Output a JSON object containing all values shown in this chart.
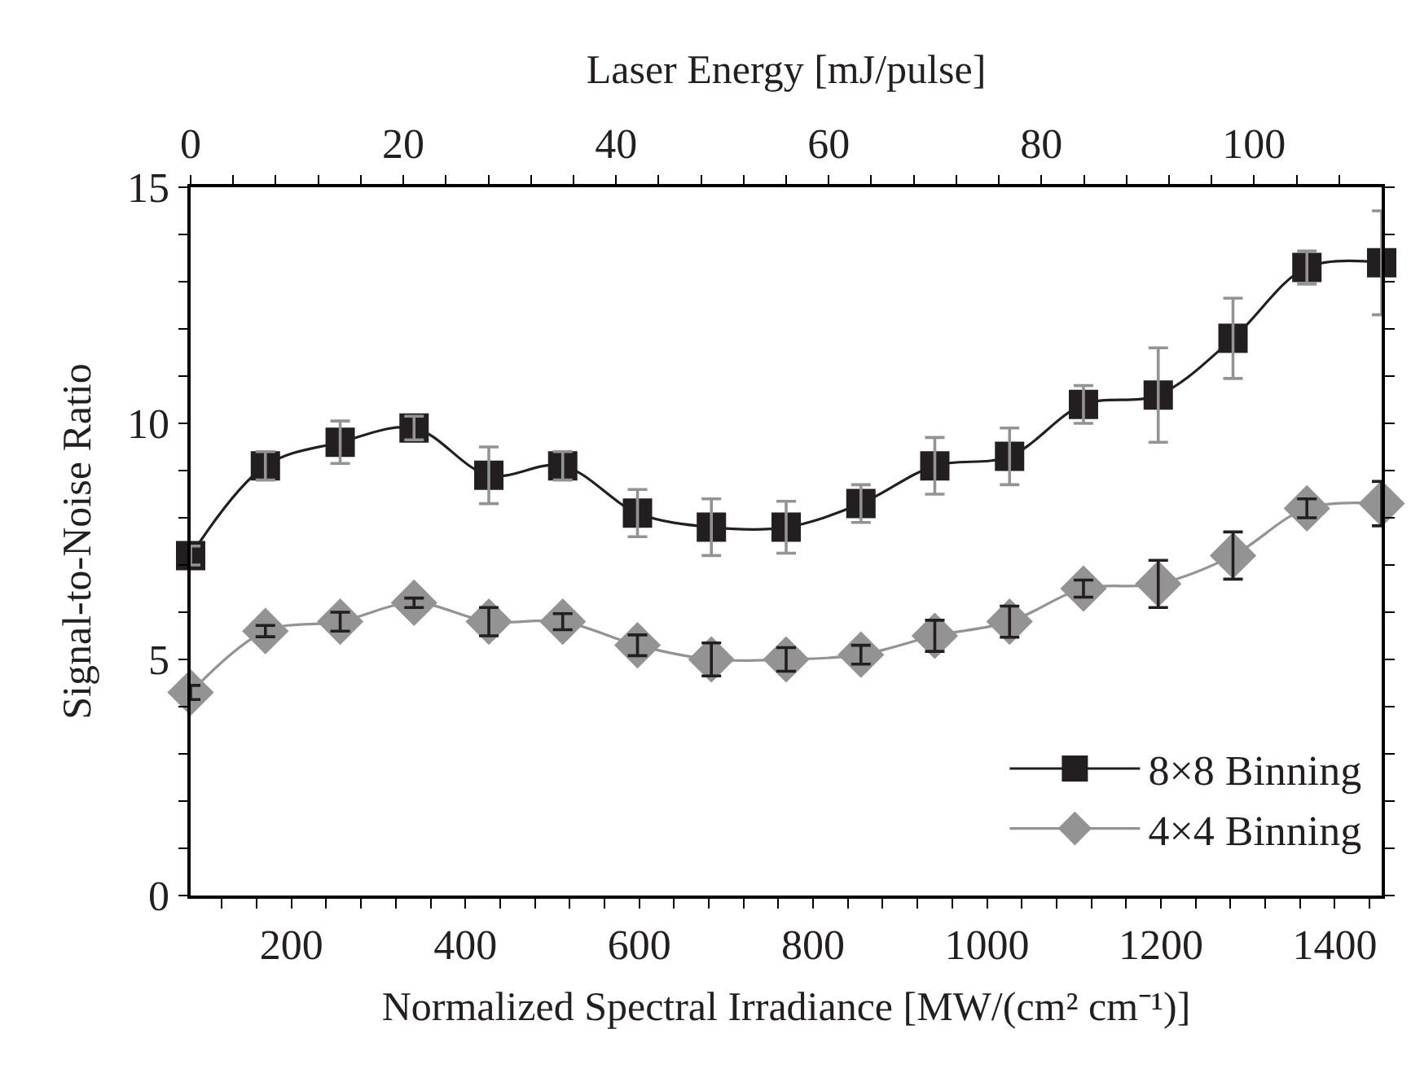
{
  "chart_data": {
    "type": "line",
    "xlabel": "Normalized Spectral Irradiance [MW/(cm² cm⁻¹)]",
    "x2label": "Laser Energy [mJ/pulse]",
    "ylabel": "Signal-to-Noise Ratio",
    "x": [
      84,
      170,
      256,
      341,
      427,
      512,
      598,
      683,
      769,
      855,
      940,
      1026,
      1111,
      1197,
      1283,
      1368,
      1454
    ],
    "series": [
      {
        "name": "8×8 Binning",
        "color": "#231f20",
        "marker": "square",
        "values": [
          7.2,
          9.1,
          9.6,
          9.9,
          8.9,
          9.1,
          8.1,
          7.8,
          7.8,
          8.3,
          9.1,
          9.3,
          10.4,
          10.6,
          11.8,
          13.3,
          13.4
        ],
        "errors": [
          0.2,
          0.3,
          0.45,
          0.25,
          0.6,
          0.3,
          0.5,
          0.6,
          0.55,
          0.4,
          0.6,
          0.6,
          0.4,
          1.0,
          0.85,
          0.35,
          1.1
        ]
      },
      {
        "name": "4×4 Binning",
        "color": "#939393",
        "marker": "diamond",
        "values": [
          4.3,
          5.6,
          5.8,
          6.2,
          5.8,
          5.8,
          5.3,
          5.0,
          5.0,
          5.1,
          5.5,
          5.8,
          6.5,
          6.6,
          7.2,
          8.2,
          8.3
        ],
        "errors": [
          0.15,
          0.12,
          0.2,
          0.1,
          0.3,
          0.17,
          0.22,
          0.35,
          0.25,
          0.2,
          0.33,
          0.33,
          0.18,
          0.5,
          0.5,
          0.2,
          0.47
        ]
      }
    ],
    "xlim": [
      84,
      1454
    ],
    "xticks": [
      {
        "value": 120,
        "label": null
      },
      {
        "value": 160,
        "label": null
      },
      200,
      {
        "value": 240,
        "label": null
      },
      {
        "value": 280,
        "label": null
      },
      {
        "value": 320,
        "label": null
      },
      {
        "value": 360,
        "label": null
      },
      400,
      {
        "value": 440,
        "label": null
      },
      {
        "value": 480,
        "label": null
      },
      {
        "value": 520,
        "label": null
      },
      {
        "value": 560,
        "label": null
      },
      600,
      {
        "value": 640,
        "label": null
      },
      {
        "value": 680,
        "label": null
      },
      {
        "value": 720,
        "label": null
      },
      {
        "value": 760,
        "label": null
      },
      800,
      {
        "value": 840,
        "label": null
      },
      {
        "value": 880,
        "label": null
      },
      {
        "value": 920,
        "label": null
      },
      {
        "value": 960,
        "label": null
      },
      1000,
      {
        "value": 1040,
        "label": null
      },
      {
        "value": 1080,
        "label": null
      },
      {
        "value": 1120,
        "label": null
      },
      {
        "value": 1160,
        "label": null
      },
      1200,
      {
        "value": 1240,
        "label": null
      },
      {
        "value": 1280,
        "label": null
      },
      {
        "value": 1320,
        "label": null
      },
      {
        "value": 1360,
        "label": null
      },
      1400,
      {
        "value": 1440,
        "label": null
      }
    ],
    "x2lim": [
      0,
      112
    ],
    "x2ticks": [
      0,
      {
        "value": 4,
        "label": null
      },
      {
        "value": 8,
        "label": null
      },
      {
        "value": 12,
        "label": null
      },
      {
        "value": 16,
        "label": null
      },
      20,
      {
        "value": 24,
        "label": null
      },
      {
        "value": 28,
        "label": null
      },
      {
        "value": 32,
        "label": null
      },
      {
        "value": 36,
        "label": null
      },
      40,
      {
        "value": 44,
        "label": null
      },
      {
        "value": 48,
        "label": null
      },
      {
        "value": 52,
        "label": null
      },
      {
        "value": 56,
        "label": null
      },
      60,
      {
        "value": 64,
        "label": null
      },
      {
        "value": 68,
        "label": null
      },
      {
        "value": 72,
        "label": null
      },
      {
        "value": 76,
        "label": null
      },
      80,
      {
        "value": 84,
        "label": null
      },
      {
        "value": 88,
        "label": null
      },
      {
        "value": 92,
        "label": null
      },
      {
        "value": 96,
        "label": null
      },
      100,
      {
        "value": 104,
        "label": null
      },
      {
        "value": 108,
        "label": null
      }
    ],
    "ylim": [
      0,
      15
    ],
    "yticks": [
      0,
      {
        "value": 1,
        "label": null
      },
      {
        "value": 2,
        "label": null
      },
      {
        "value": 3,
        "label": null
      },
      {
        "value": 4,
        "label": null
      },
      5,
      {
        "value": 6,
        "label": null
      },
      {
        "value": 7,
        "label": null
      },
      {
        "value": 8,
        "label": null
      },
      {
        "value": 9,
        "label": null
      },
      10,
      {
        "value": 11,
        "label": null
      },
      {
        "value": 12,
        "label": null
      },
      {
        "value": 13,
        "label": null
      },
      {
        "value": 14,
        "label": null
      },
      15
    ],
    "legend": "bottom right",
    "line_style": "solid"
  }
}
